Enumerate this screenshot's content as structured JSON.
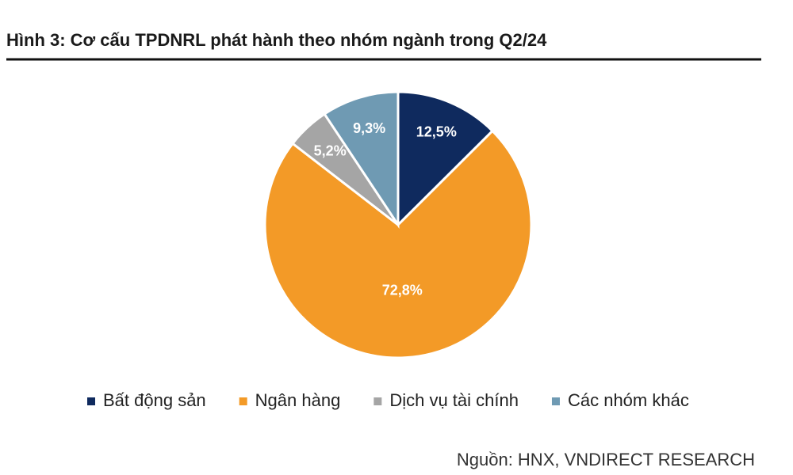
{
  "chart_data": {
    "type": "pie",
    "title": "Hình 3: Cơ cấu TPDNRL phát hành theo nhóm ngành trong Q2/24",
    "categories": [
      "Bất động sản",
      "Ngân hàng",
      "Dịch vụ tài chính",
      "Các nhóm khác"
    ],
    "values": [
      12.5,
      72.8,
      5.2,
      9.3
    ],
    "value_labels": [
      "12,5%",
      "72,8%",
      "5,2%",
      "9,3%"
    ],
    "colors": [
      "#0f2a5e",
      "#f39a27",
      "#a5a5a5",
      "#6f9ab3"
    ],
    "legend": "bottom",
    "source": "Nguồn: HNX, VNDIRECT RESEARCH"
  }
}
